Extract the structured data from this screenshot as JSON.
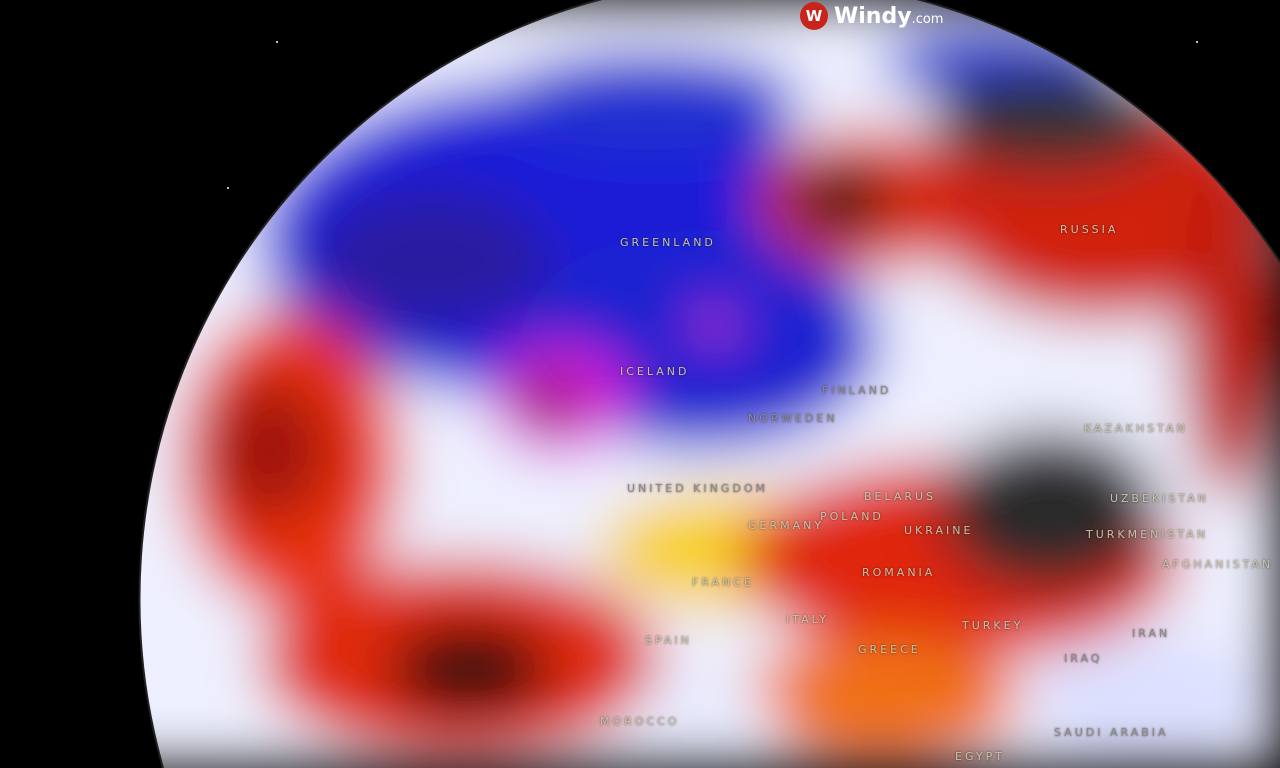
{
  "brand": {
    "name": "Windy",
    "suffix": ".com",
    "icon": "windy-logo-icon",
    "accent": "#c8241c"
  },
  "map": {
    "view": "globe",
    "color_scale": {
      "cold": "#1a1adc",
      "neutral": "#f0f0ff",
      "warm": "#f5e020",
      "hot": "#e8200a",
      "extreme": "#2a2a2a",
      "low_pressure": "#e020e0"
    },
    "labels": [
      {
        "id": "greenland",
        "text": "GREENLAND"
      },
      {
        "id": "russia",
        "text": "RUSSIA"
      },
      {
        "id": "iceland",
        "text": "ICELAND"
      },
      {
        "id": "finland",
        "text": "FINLAND"
      },
      {
        "id": "norway-sweden",
        "text": "NORWEDEN"
      },
      {
        "id": "united-kingdom",
        "text": "UNITED KINGDOM"
      },
      {
        "id": "belarus",
        "text": "BELARUS"
      },
      {
        "id": "poland",
        "text": "POLAND"
      },
      {
        "id": "germany",
        "text": "GERMANY"
      },
      {
        "id": "ukraine",
        "text": "UKRAINE"
      },
      {
        "id": "kazakhstan",
        "text": "KAZAKHSTAN"
      },
      {
        "id": "uzbekistan",
        "text": "UZBEKISTAN"
      },
      {
        "id": "turkmenistan",
        "text": "TURKMENISTAN"
      },
      {
        "id": "afghanistan",
        "text": "AFGHANISTAN"
      },
      {
        "id": "romania",
        "text": "ROMANIA"
      },
      {
        "id": "france",
        "text": "FRANCE"
      },
      {
        "id": "italy",
        "text": "ITALY"
      },
      {
        "id": "spain",
        "text": "SPAIN"
      },
      {
        "id": "greece",
        "text": "GREECE"
      },
      {
        "id": "turkey",
        "text": "TURKEY"
      },
      {
        "id": "iraq",
        "text": "IRAQ"
      },
      {
        "id": "iran",
        "text": "IRAN"
      },
      {
        "id": "saudi-arabia",
        "text": "SAUDI ARABIA"
      },
      {
        "id": "egypt",
        "text": "EGYPT"
      },
      {
        "id": "morocco",
        "text": "MOROCCO"
      }
    ]
  }
}
